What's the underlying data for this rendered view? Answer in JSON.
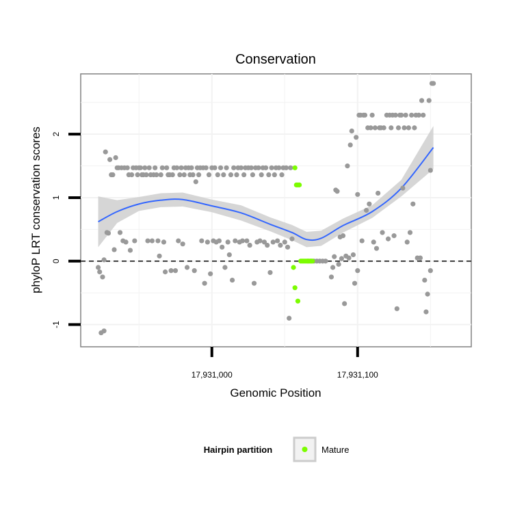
{
  "chart_data": {
    "type": "scatter",
    "title": "Conservation",
    "xlabel": "Genomic Position",
    "ylabel": "phyloP LRT conservation scores",
    "xlim": [
      17930910,
      17931178
    ],
    "ylim": [
      -1.35,
      2.95
    ],
    "x_ticks": [
      {
        "value": 17931000,
        "label": "17,931,000"
      },
      {
        "value": 17931100,
        "label": "17,931,100"
      }
    ],
    "y_ticks": [
      {
        "value": -1,
        "label": "-1"
      },
      {
        "value": 0,
        "label": "0"
      },
      {
        "value": 1,
        "label": "1"
      },
      {
        "value": 2,
        "label": "2"
      }
    ],
    "grid": true,
    "reference_line": {
      "y": 0,
      "style": "dashed"
    },
    "legend": {
      "title": "Hairpin partition",
      "placement": "bottom",
      "entries": [
        {
          "name": "Mature",
          "color": "#7cfc00"
        }
      ]
    },
    "colors": {
      "other": "#999999",
      "mature": "#7cfc00",
      "smooth": "#3366ff",
      "band": "#cccccc"
    },
    "series": [
      {
        "name": "",
        "color": "#999999",
        "points": [
          [
            17930922,
            -0.1
          ],
          [
            17930923,
            -0.17
          ],
          [
            17930924,
            -1.13
          ],
          [
            17930925,
            -0.25
          ],
          [
            17930926,
            -1.1
          ],
          [
            17930926,
            0.02
          ],
          [
            17930927,
            1.72
          ],
          [
            17930928,
            0.45
          ],
          [
            17930929,
            0.44
          ],
          [
            17930930,
            1.6
          ],
          [
            17930931,
            1.36
          ],
          [
            17930932,
            1.36
          ],
          [
            17930933,
            0.18
          ],
          [
            17930934,
            1.63
          ],
          [
            17930935,
            1.47
          ],
          [
            17930936,
            1.47
          ],
          [
            17930937,
            0.45
          ],
          [
            17930938,
            1.47
          ],
          [
            17930939,
            0.32
          ],
          [
            17930940,
            1.47
          ],
          [
            17930941,
            0.3
          ],
          [
            17930942,
            1.47
          ],
          [
            17930943,
            1.36
          ],
          [
            17930944,
            0.17
          ],
          [
            17930945,
            1.36
          ],
          [
            17930946,
            1.47
          ],
          [
            17930947,
            0.32
          ],
          [
            17930948,
            1.47
          ],
          [
            17930949,
            1.36
          ],
          [
            17930950,
            1.47
          ],
          [
            17930951,
            1.47
          ],
          [
            17930952,
            1.36
          ],
          [
            17930953,
            1.36
          ],
          [
            17930954,
            1.47
          ],
          [
            17930955,
            1.36
          ],
          [
            17930956,
            0.32
          ],
          [
            17930957,
            1.47
          ],
          [
            17930958,
            1.36
          ],
          [
            17930959,
            0.32
          ],
          [
            17930960,
            1.36
          ],
          [
            17930961,
            1.47
          ],
          [
            17930962,
            1.36
          ],
          [
            17930963,
            0.32
          ],
          [
            17930964,
            0.08
          ],
          [
            17930965,
            1.36
          ],
          [
            17930966,
            1.47
          ],
          [
            17930967,
            0.3
          ],
          [
            17930968,
            -0.17
          ],
          [
            17930969,
            1.47
          ],
          [
            17930970,
            1.36
          ],
          [
            17930971,
            1.36
          ],
          [
            17930972,
            -0.15
          ],
          [
            17930973,
            1.36
          ],
          [
            17930974,
            1.47
          ],
          [
            17930975,
            -0.15
          ],
          [
            17930976,
            1.47
          ],
          [
            17930977,
            0.32
          ],
          [
            17930978,
            1.36
          ],
          [
            17930979,
            1.47
          ],
          [
            17930980,
            0.27
          ],
          [
            17930981,
            1.36
          ],
          [
            17930982,
            1.47
          ],
          [
            17930983,
            -0.1
          ],
          [
            17930984,
            1.47
          ],
          [
            17930985,
            1.36
          ],
          [
            17930986,
            1.47
          ],
          [
            17930987,
            1.36
          ],
          [
            17930988,
            -0.15
          ],
          [
            17930989,
            1.25
          ],
          [
            17930990,
            1.47
          ],
          [
            17930991,
            1.36
          ],
          [
            17930992,
            1.47
          ],
          [
            17930993,
            0.32
          ],
          [
            17930994,
            1.47
          ],
          [
            17930995,
            -0.35
          ],
          [
            17930996,
            1.47
          ],
          [
            17930997,
            0.3
          ],
          [
            17930998,
            1.36
          ],
          [
            17930999,
            -0.2
          ],
          [
            17931000,
            1.47
          ],
          [
            17931001,
            0.32
          ],
          [
            17931002,
            1.47
          ],
          [
            17931003,
            0.3
          ],
          [
            17931004,
            1.36
          ],
          [
            17931005,
            0.32
          ],
          [
            17931006,
            1.47
          ],
          [
            17931007,
            0.22
          ],
          [
            17931008,
            1.36
          ],
          [
            17931009,
            -0.1
          ],
          [
            17931010,
            1.47
          ],
          [
            17931011,
            0.3
          ],
          [
            17931012,
            0.1
          ],
          [
            17931013,
            1.36
          ],
          [
            17931014,
            -0.3
          ],
          [
            17931015,
            1.47
          ],
          [
            17931016,
            0.32
          ],
          [
            17931017,
            1.36
          ],
          [
            17931018,
            1.47
          ],
          [
            17931019,
            0.3
          ],
          [
            17931020,
            1.47
          ],
          [
            17931021,
            0.32
          ],
          [
            17931022,
            1.36
          ],
          [
            17931023,
            1.47
          ],
          [
            17931024,
            0.32
          ],
          [
            17931025,
            1.47
          ],
          [
            17931026,
            0.25
          ],
          [
            17931027,
            1.47
          ],
          [
            17931028,
            1.36
          ],
          [
            17931029,
            -0.35
          ],
          [
            17931030,
            1.47
          ],
          [
            17931031,
            0.3
          ],
          [
            17931032,
            1.47
          ],
          [
            17931033,
            0.32
          ],
          [
            17931034,
            1.36
          ],
          [
            17931035,
            1.47
          ],
          [
            17931036,
            0.3
          ],
          [
            17931037,
            1.47
          ],
          [
            17931038,
            0.25
          ],
          [
            17931039,
            1.36
          ],
          [
            17931040,
            -0.18
          ],
          [
            17931041,
            1.47
          ],
          [
            17931042,
            0.3
          ],
          [
            17931043,
            1.36
          ],
          [
            17931044,
            1.47
          ],
          [
            17931045,
            0.32
          ],
          [
            17931046,
            1.47
          ],
          [
            17931047,
            0.25
          ],
          [
            17931048,
            1.36
          ],
          [
            17931049,
            1.47
          ],
          [
            17931050,
            0.3
          ],
          [
            17931051,
            1.47
          ],
          [
            17931052,
            0.22
          ],
          [
            17931053,
            -0.9
          ],
          [
            17931054,
            1.47
          ],
          [
            17931055,
            0.35
          ],
          [
            17931066,
            0
          ],
          [
            17931068,
            0
          ],
          [
            17931070,
            0
          ],
          [
            17931072,
            0
          ],
          [
            17931074,
            0
          ],
          [
            17931076,
            0
          ],
          [
            17931078,
            0
          ],
          [
            17931082,
            -0.25
          ],
          [
            17931083,
            -0.1
          ],
          [
            17931084,
            0.07
          ],
          [
            17931085,
            1.12
          ],
          [
            17931086,
            1.1
          ],
          [
            17931087,
            -0.05
          ],
          [
            17931088,
            0.38
          ],
          [
            17931089,
            0.04
          ],
          [
            17931090,
            0.4
          ],
          [
            17931091,
            -0.67
          ],
          [
            17931092,
            0.08
          ],
          [
            17931093,
            1.5
          ],
          [
            17931094,
            0.05
          ],
          [
            17931095,
            1.83
          ],
          [
            17931096,
            2.05
          ],
          [
            17931097,
            0.1
          ],
          [
            17931098,
            -0.35
          ],
          [
            17931099,
            1.95
          ],
          [
            17931100,
            1.05
          ],
          [
            17931100,
            -0.15
          ],
          [
            17931101,
            2.3
          ],
          [
            17931102,
            2.3
          ],
          [
            17931103,
            0.32
          ],
          [
            17931104,
            2.3
          ],
          [
            17931105,
            2.3
          ],
          [
            17931106,
            0.8
          ],
          [
            17931107,
            2.1
          ],
          [
            17931108,
            0.9
          ],
          [
            17931109,
            2.1
          ],
          [
            17931110,
            2.3
          ],
          [
            17931111,
            0.3
          ],
          [
            17931112,
            2.1
          ],
          [
            17931113,
            0.2
          ],
          [
            17931114,
            1.07
          ],
          [
            17931115,
            2.1
          ],
          [
            17931116,
            2.1
          ],
          [
            17931117,
            0.45
          ],
          [
            17931118,
            2.1
          ],
          [
            17931120,
            2.3
          ],
          [
            17931121,
            0.35
          ],
          [
            17931122,
            2.3
          ],
          [
            17931123,
            2.1
          ],
          [
            17931124,
            2.3
          ],
          [
            17931125,
            0.4
          ],
          [
            17931126,
            2.3
          ],
          [
            17931127,
            -0.75
          ],
          [
            17931128,
            2.1
          ],
          [
            17931129,
            2.3
          ],
          [
            17931130,
            2.3
          ],
          [
            17931131,
            1.15
          ],
          [
            17931132,
            2.1
          ],
          [
            17931133,
            2.3
          ],
          [
            17931134,
            0.3
          ],
          [
            17931135,
            2.1
          ],
          [
            17931136,
            0.45
          ],
          [
            17931137,
            2.3
          ],
          [
            17931138,
            0.9
          ],
          [
            17931139,
            2.1
          ],
          [
            17931140,
            2.3
          ],
          [
            17931141,
            0.05
          ],
          [
            17931142,
            2.3
          ],
          [
            17931143,
            0.05
          ],
          [
            17931144,
            2.53
          ],
          [
            17931145,
            2.3
          ],
          [
            17931146,
            -0.3
          ],
          [
            17931147,
            -0.8
          ],
          [
            17931148,
            -0.52
          ],
          [
            17931149,
            2.53
          ],
          [
            17931150,
            -0.15
          ],
          [
            17931150,
            1.43
          ],
          [
            17931151,
            2.8
          ],
          [
            17931152,
            2.8
          ]
        ]
      },
      {
        "name": "Mature",
        "color": "#7cfc00",
        "points": [
          [
            17931056,
            -0.1
          ],
          [
            17931057,
            1.47
          ],
          [
            17931057,
            -0.42
          ],
          [
            17931058,
            1.2
          ],
          [
            17931059,
            1.2
          ],
          [
            17931059,
            -0.63
          ],
          [
            17931060,
            1.2
          ],
          [
            17931061,
            0
          ],
          [
            17931062,
            0
          ],
          [
            17931063,
            0
          ],
          [
            17931064,
            0
          ],
          [
            17931065,
            0
          ],
          [
            17931066,
            0
          ],
          [
            17931067,
            0
          ],
          [
            17931068,
            0
          ],
          [
            17931069,
            0
          ]
        ]
      }
    ],
    "smooth": {
      "x": [
        17930922,
        17930935,
        17930950,
        17930965,
        17930980,
        17931000,
        17931020,
        17931040,
        17931055,
        17931065,
        17931075,
        17931090,
        17931110,
        17931130,
        17931152
      ],
      "y": [
        0.62,
        0.78,
        0.9,
        0.96,
        0.97,
        0.87,
        0.76,
        0.58,
        0.45,
        0.34,
        0.36,
        0.56,
        0.78,
        1.15,
        1.79
      ],
      "lower": [
        0.22,
        0.6,
        0.79,
        0.85,
        0.86,
        0.77,
        0.64,
        0.47,
        0.33,
        0.22,
        0.24,
        0.45,
        0.68,
        1.02,
        1.45
      ],
      "upper": [
        1.02,
        0.96,
        1.01,
        1.07,
        1.08,
        0.97,
        0.88,
        0.69,
        0.57,
        0.46,
        0.48,
        0.67,
        0.88,
        1.28,
        2.13
      ]
    }
  }
}
